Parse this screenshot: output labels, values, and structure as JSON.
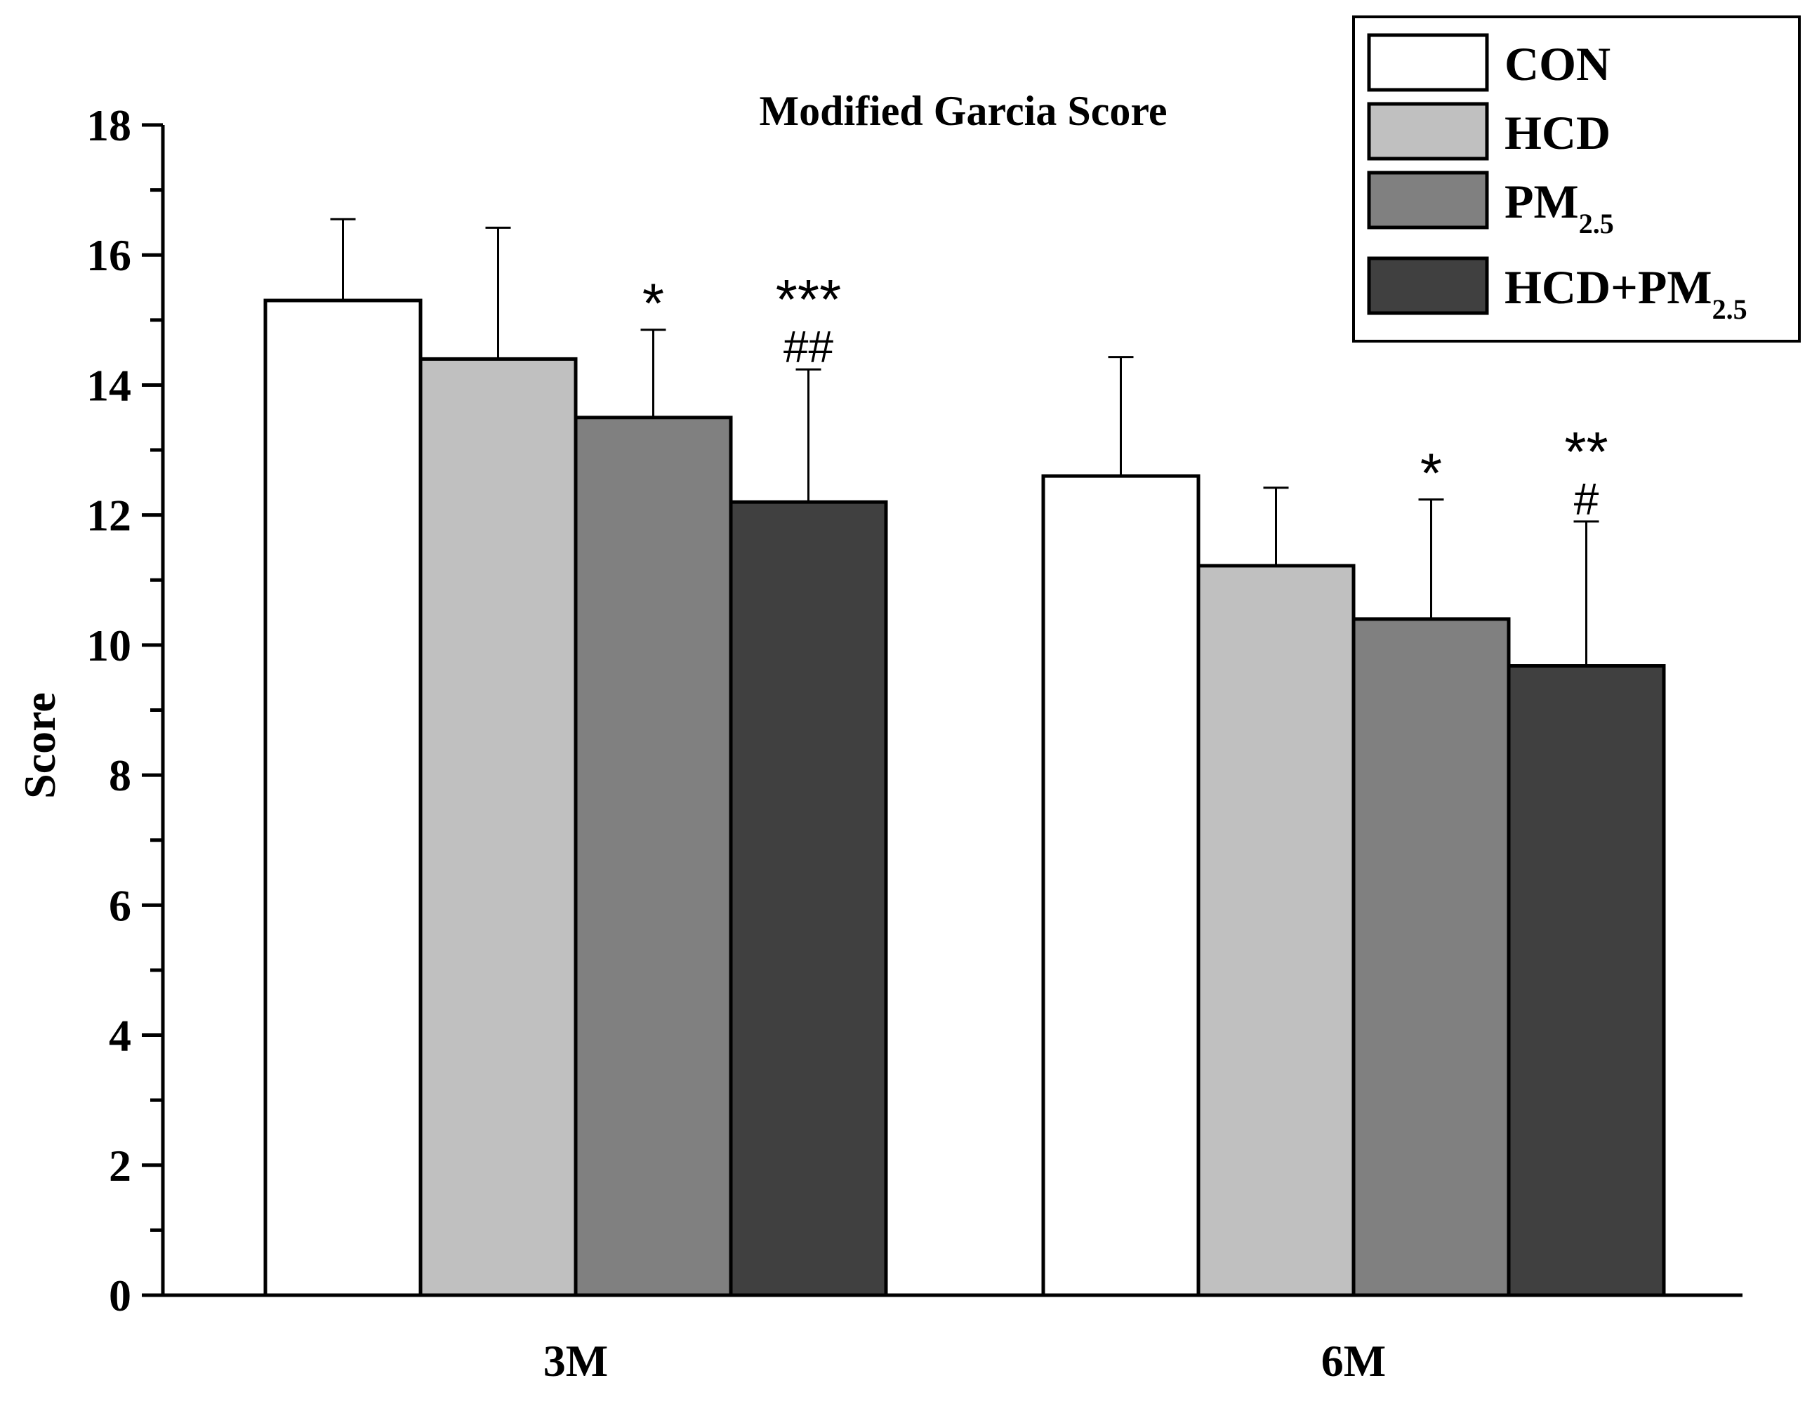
{
  "chart_data": {
    "type": "bar",
    "title": "Modified Garcia Score",
    "xlabel": "",
    "ylabel": "Score",
    "ylim": [
      0,
      18
    ],
    "yticks": [
      0,
      2,
      4,
      6,
      8,
      10,
      12,
      14,
      16,
      18
    ],
    "categories": [
      "3M",
      "6M"
    ],
    "series": [
      {
        "name": "CON",
        "name_main": "CON",
        "name_sub": "",
        "color": "#ffffff",
        "values": [
          15.3,
          12.6
        ],
        "errors": [
          1.25,
          1.83
        ],
        "annotations": [
          [
            "",
            ""
          ],
          [
            "",
            ""
          ]
        ]
      },
      {
        "name": "HCD",
        "name_main": "HCD",
        "name_sub": "",
        "color": "#c0c0c0",
        "values": [
          14.4,
          11.22
        ],
        "errors": [
          2.02,
          1.2
        ],
        "annotations": [
          [
            "",
            ""
          ],
          [
            "",
            ""
          ]
        ]
      },
      {
        "name": "PM2.5",
        "name_main": "PM",
        "name_sub": "2.5",
        "color": "#808080",
        "values": [
          13.5,
          10.4
        ],
        "errors": [
          1.35,
          1.84
        ],
        "annotations": [
          [
            "*",
            ""
          ],
          [
            "*",
            ""
          ]
        ]
      },
      {
        "name": "HCD+PM2.5",
        "name_main": "HCD+PM",
        "name_sub": "2.5",
        "color": "#404040",
        "values": [
          12.2,
          9.68
        ],
        "errors": [
          2.04,
          2.22
        ],
        "annotations": [
          [
            "***",
            "##"
          ],
          [
            "**",
            "#"
          ]
        ]
      }
    ],
    "legend_position": "top-right",
    "grid": false
  }
}
